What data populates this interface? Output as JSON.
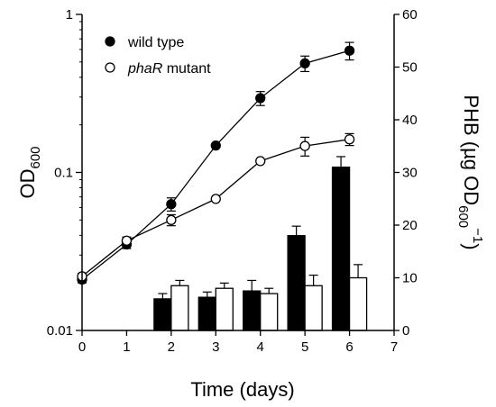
{
  "chart_data": {
    "type": "line",
    "xlabel": "Time (days)",
    "ylabel_left": {
      "main": "OD",
      "sub": "600"
    },
    "ylabel_right": {
      "pre": "PHB (µg OD",
      "sub": "600",
      "sup": "−1",
      "post": ")"
    },
    "x": {
      "range": [
        0,
        7
      ],
      "ticks": [
        0,
        1,
        2,
        3,
        4,
        5,
        6,
        7
      ],
      "tick_labels": [
        "0",
        "1",
        "2",
        "3",
        "4",
        "5",
        "6",
        "7"
      ]
    },
    "y_left": {
      "scale": "log",
      "range": [
        0.01,
        1
      ],
      "ticks": [
        0.01,
        0.1,
        1
      ],
      "tick_labels": [
        "0.01",
        "0.1",
        "1"
      ]
    },
    "y_right": {
      "scale": "linear",
      "range": [
        0,
        60
      ],
      "ticks": [
        0,
        10,
        20,
        30,
        40,
        50,
        60
      ],
      "tick_labels": [
        "0",
        "10",
        "20",
        "30",
        "40",
        "50",
        "60"
      ]
    },
    "legend_position": "top-left",
    "od_series": [
      {
        "name": "wild type",
        "marker": "filled-circle",
        "axis": "left",
        "x": [
          0,
          1,
          2,
          3,
          4,
          5,
          6
        ],
        "y": [
          0.021,
          0.035,
          0.063,
          0.148,
          0.295,
          0.49,
          0.59
        ],
        "err": [
          0.001,
          0.002,
          0.006,
          0,
          0.03,
          0.055,
          0.075
        ]
      },
      {
        "name": "phaR mutant",
        "name_italic": "phaR",
        "name_rest": " mutant",
        "marker": "open-circle",
        "axis": "left",
        "x": [
          0,
          1,
          2,
          3,
          4,
          5,
          6
        ],
        "y": [
          0.022,
          0.037,
          0.05,
          0.068,
          0.118,
          0.147,
          0.162
        ],
        "err": [
          0.001,
          0.002,
          0.004,
          0,
          0,
          0.02,
          0.014
        ]
      }
    ],
    "phb_bars": [
      {
        "series": "wild type",
        "fill": "#000000",
        "axis": "right",
        "x": [
          2,
          3,
          4,
          5,
          6
        ],
        "values": [
          6,
          6.3,
          7.5,
          18,
          31
        ],
        "err": [
          1,
          1,
          2,
          1.8,
          2
        ]
      },
      {
        "series": "phaR mutant",
        "fill": "#ffffff",
        "axis": "right",
        "x": [
          2,
          3,
          4,
          5,
          6
        ],
        "values": [
          8.5,
          8,
          7,
          8.5,
          10
        ],
        "err": [
          1,
          1,
          1,
          2,
          2.5
        ]
      }
    ],
    "grid": false
  }
}
